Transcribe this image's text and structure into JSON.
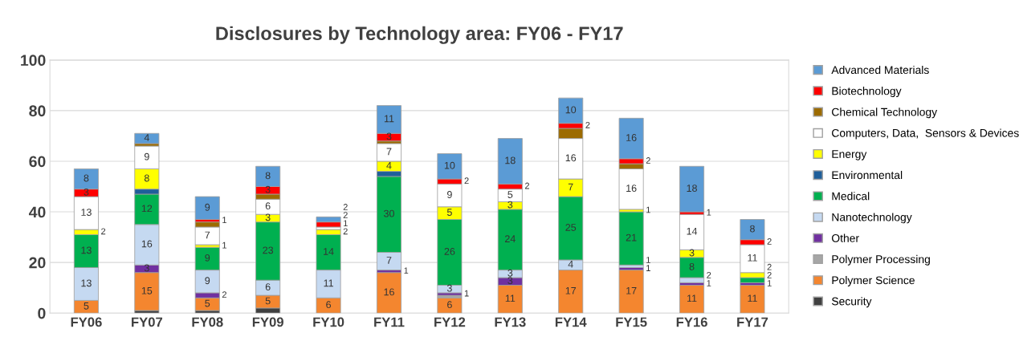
{
  "chart_data": {
    "type": "bar",
    "stacked": true,
    "title": "Disclosures by Technology area: FY06 - FY17",
    "categories": [
      "FY06",
      "FY07",
      "FY08",
      "FY09",
      "FY10",
      "FY11",
      "FY12",
      "FY13",
      "FY14",
      "FY15",
      "FY16",
      "FY17"
    ],
    "series": [
      {
        "name": "Security",
        "color": "#404040",
        "values": [
          0,
          1,
          1,
          2,
          0,
          0,
          0,
          0,
          0,
          0,
          0,
          0
        ]
      },
      {
        "name": "Polymer Science",
        "color": "#f4862f",
        "values": [
          5,
          15,
          5,
          5,
          6,
          16,
          6,
          11,
          17,
          17,
          11,
          11
        ],
        "value_labels": [
          "5",
          "15",
          "5",
          "5",
          "6",
          "16",
          "6",
          "11",
          "17",
          "17",
          "11",
          "11"
        ]
      },
      {
        "name": "Polymer Processing",
        "color": "#a6a6a6",
        "values": [
          0,
          0,
          0,
          0,
          0,
          0,
          1,
          0,
          0,
          0,
          0,
          0
        ]
      },
      {
        "name": "Other",
        "color": "#7030a0",
        "values": [
          0,
          3,
          2,
          0,
          0,
          1,
          1,
          3,
          0,
          1,
          1,
          1
        ],
        "value_labels": [
          null,
          "3",
          "2",
          null,
          null,
          "1",
          "1",
          "3",
          null,
          "1",
          "1",
          "1"
        ]
      },
      {
        "name": "Nanotechnology",
        "color": "#c5d9f1",
        "values": [
          13,
          16,
          9,
          6,
          11,
          7,
          3,
          3,
          4,
          1,
          2,
          0
        ],
        "value_labels": [
          "13",
          "16",
          "9",
          "6",
          "11",
          "7",
          "3",
          "3",
          "4",
          "1",
          "2",
          null
        ]
      },
      {
        "name": "Medical",
        "color": "#00b050",
        "values": [
          13,
          12,
          9,
          23,
          14,
          30,
          26,
          24,
          25,
          21,
          8,
          2
        ],
        "value_labels": [
          "13",
          "12",
          "9",
          "23",
          "14",
          "30",
          "26",
          "24",
          "25",
          "21",
          "8",
          "2"
        ]
      },
      {
        "name": "Environmental",
        "color": "#1f5f9a",
        "values": [
          0,
          2,
          0,
          0,
          0,
          2,
          0,
          0,
          0,
          0,
          0,
          0
        ]
      },
      {
        "name": "Energy",
        "color": "#ffff00",
        "values": [
          2,
          8,
          1,
          3,
          2,
          4,
          5,
          3,
          7,
          1,
          3,
          2
        ],
        "value_labels": [
          "2",
          "8",
          "1",
          "3",
          "2",
          "4",
          "5",
          "3",
          "7",
          "1",
          "3",
          "2"
        ]
      },
      {
        "name": "Computers, Data,  Sensors & Devices",
        "color": "#ffffff",
        "values": [
          13,
          9,
          7,
          6,
          1,
          7,
          9,
          5,
          16,
          16,
          14,
          11
        ],
        "value_labels": [
          "13",
          "9",
          "7",
          "6",
          "1",
          "7",
          "9",
          "5",
          "16",
          "16",
          "14",
          "11"
        ]
      },
      {
        "name": "Chemical Technology",
        "color": "#9c6b00",
        "values": [
          0,
          1,
          2,
          2,
          0,
          1,
          0,
          0,
          4,
          2,
          0,
          0
        ]
      },
      {
        "name": "Biotechnology",
        "color": "#ff0000",
        "values": [
          3,
          0,
          1,
          3,
          2,
          3,
          2,
          2,
          2,
          2,
          1,
          2
        ],
        "value_labels": [
          "3",
          null,
          "1",
          "3",
          "2",
          "3",
          "2",
          "2",
          "2",
          "2",
          "1",
          "2"
        ]
      },
      {
        "name": "Advanced Materials",
        "color": "#5b9bd5",
        "values": [
          8,
          4,
          9,
          8,
          2,
          11,
          10,
          18,
          10,
          16,
          18,
          8
        ],
        "value_labels": [
          "8",
          "4",
          "9",
          "8",
          "2",
          "11",
          "10",
          "18",
          "10",
          "16",
          "18",
          "8"
        ]
      }
    ],
    "ylim": [
      0,
      100
    ],
    "yticks": [
      0,
      20,
      40,
      60,
      80,
      100
    ],
    "grid": "y",
    "legend": "right"
  }
}
